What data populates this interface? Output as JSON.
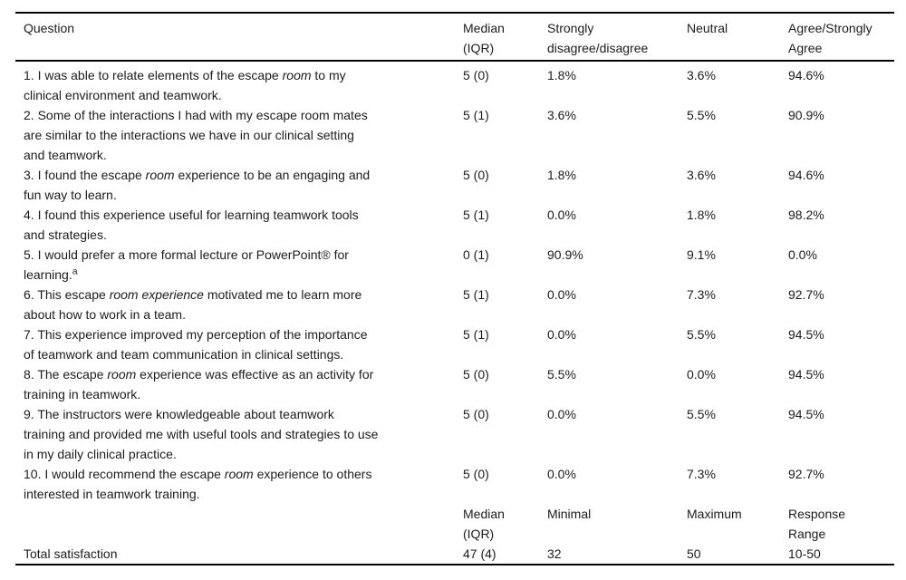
{
  "page": {
    "background": "#ffffff",
    "text_color": "#1c1c1c",
    "rule_color": "#000000"
  },
  "table": {
    "header": {
      "columns": [
        "Question",
        "Median\n(IQR)",
        "Strongly\ndisagree/disagree",
        "Neutral",
        "Agree/Strongly\nAgree"
      ]
    },
    "rows": [
      {
        "question": [
          {
            "t": "1. I was able to relate elements of the escape "
          },
          {
            "t": "room",
            "i": true
          },
          {
            "t": " to my\nclinical environment and teamwork."
          }
        ],
        "values": [
          "5 (0)",
          "1.8%",
          "3.6%",
          "94.6%"
        ]
      },
      {
        "question": [
          {
            "t": "2. Some of the interactions I had with my escape room mates\nare similar to the interactions we have in our clinical setting\nand teamwork."
          }
        ],
        "values": [
          "5 (1)",
          "3.6%",
          "5.5%",
          "90.9%"
        ]
      },
      {
        "question": [
          {
            "t": "3. I found the escape "
          },
          {
            "t": "room",
            "i": true
          },
          {
            "t": " experience to be an engaging and\nfun way to learn."
          }
        ],
        "values": [
          "5 (0)",
          "1.8%",
          "3.6%",
          "94.6%"
        ]
      },
      {
        "question": [
          {
            "t": "4. I found this experience useful for learning teamwork tools\nand strategies."
          }
        ],
        "values": [
          "5 (1)",
          "0.0%",
          "1.8%",
          "98.2%"
        ]
      },
      {
        "question": [
          {
            "t": "5. I would prefer a more formal lecture or PowerPoint® for\nlearning."
          },
          {
            "t": "a",
            "sup": true
          }
        ],
        "values": [
          "0 (1)",
          "90.9%",
          "9.1%",
          "0.0%"
        ]
      },
      {
        "question": [
          {
            "t": "6. This escape "
          },
          {
            "t": "room experience",
            "i": true
          },
          {
            "t": " motivated me to learn more\nabout how to work in a team."
          }
        ],
        "values": [
          "5 (1)",
          "0.0%",
          "7.3%",
          "92.7%"
        ]
      },
      {
        "question": [
          {
            "t": "7. This experience improved my perception of the importance\nof teamwork and team communication in clinical settings."
          }
        ],
        "values": [
          "5 (1)",
          "0.0%",
          "5.5%",
          "94.5%"
        ]
      },
      {
        "question": [
          {
            "t": "8. The escape "
          },
          {
            "t": "room",
            "i": true
          },
          {
            "t": " experience was effective as an activity for\ntraining in teamwork."
          }
        ],
        "values": [
          "5 (0)",
          "5.5%",
          "0.0%",
          "94.5%"
        ]
      },
      {
        "question": [
          {
            "t": "9. The instructors were knowledgeable about teamwork\ntraining and provided me with useful tools and strategies to use\nin my daily clinical practice."
          }
        ],
        "values": [
          "5 (0)",
          "0.0%",
          "5.5%",
          "94.5%"
        ]
      },
      {
        "question": [
          {
            "t": "10. I would recommend the escape "
          },
          {
            "t": "room",
            "i": true
          },
          {
            "t": " experience to others\ninterested in teamwork training."
          }
        ],
        "values": [
          "5 (0)",
          "0.0%",
          "7.3%",
          "92.7%"
        ]
      }
    ],
    "subheader": {
      "columns": [
        "",
        "Median\n(IQR)",
        "Minimal",
        "Maximum",
        "Response\nRange"
      ]
    },
    "total": {
      "label": "Total satisfaction",
      "values": [
        "47 (4)",
        "32",
        "50",
        "10-50"
      ]
    }
  }
}
